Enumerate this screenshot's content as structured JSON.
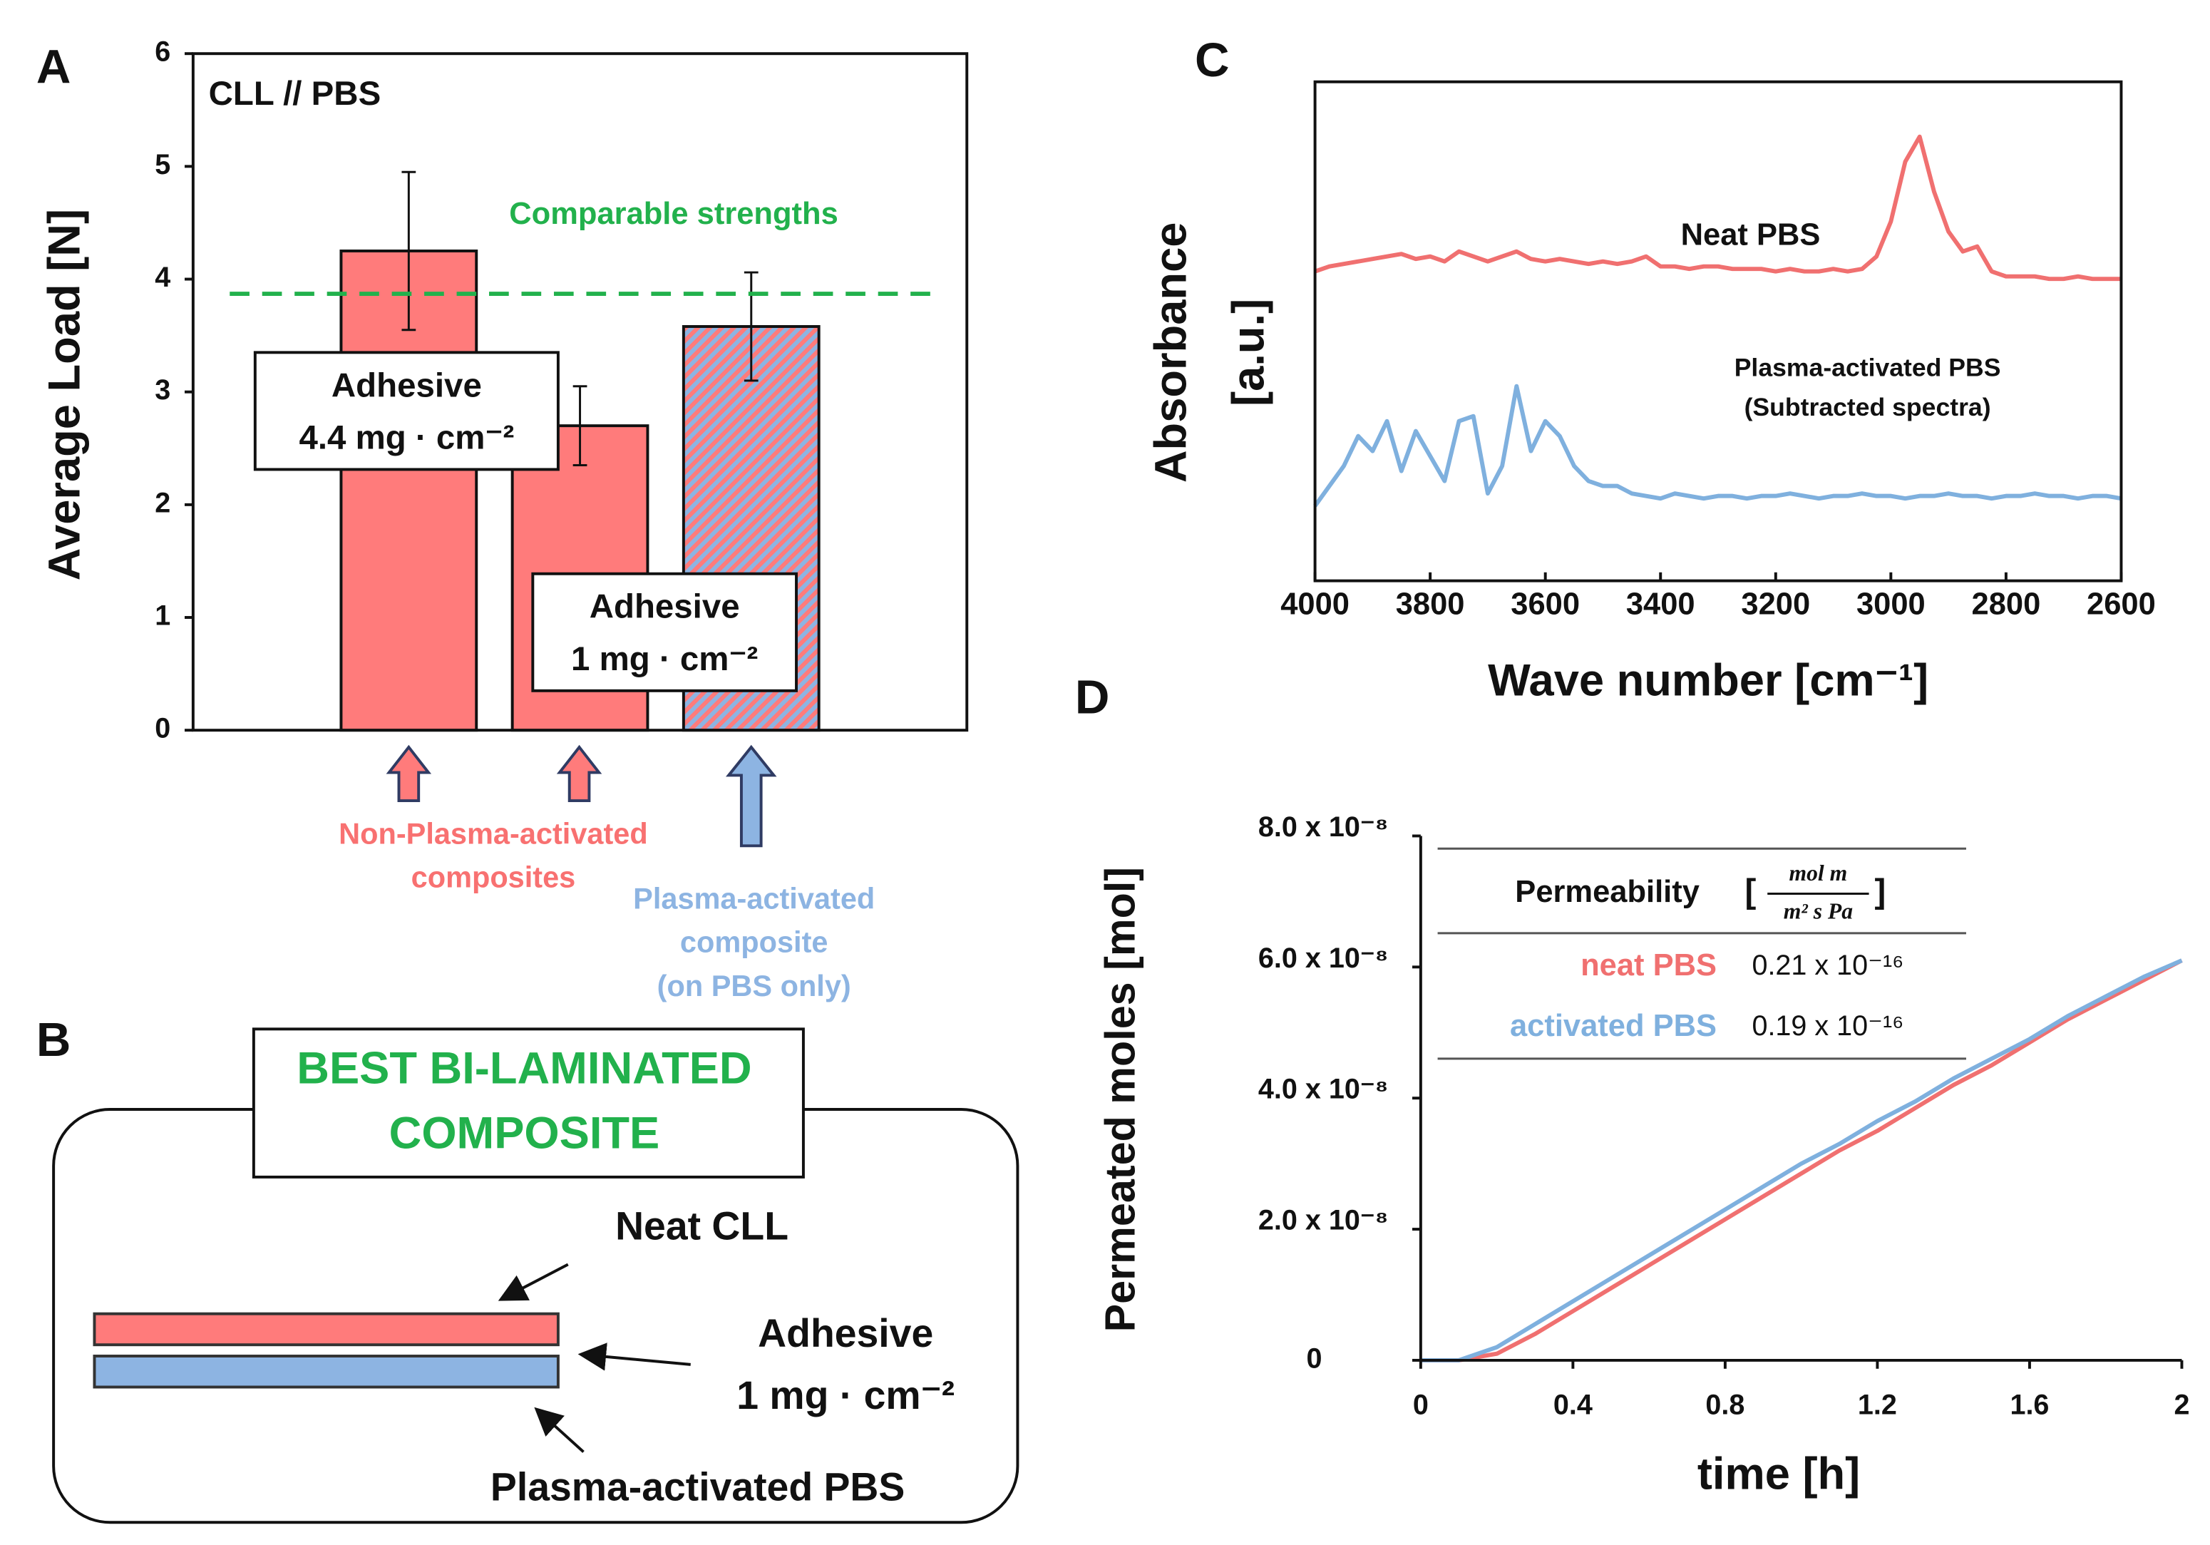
{
  "chart_data": [
    {
      "type": "bar",
      "panel": "A",
      "ylabel": "Average Load [N]",
      "categories": [
        null,
        null,
        null
      ],
      "values": [
        4.25,
        2.7,
        3.58
      ],
      "errors": [
        0.7,
        0.35,
        0.48
      ],
      "colors": [
        "#ff7b7b",
        "#ff7b7b",
        "#9b8fc4"
      ],
      "hatch": [
        false,
        false,
        true
      ],
      "ylim": [
        0,
        6
      ],
      "yticks": [
        0,
        1,
        2,
        3,
        4,
        5,
        6
      ],
      "annotation": "CLL // PBS",
      "reference_line": {
        "value": 3.87,
        "label": "Comparable strengths",
        "color": "#22b14c"
      },
      "bar_labels": [
        [
          "Adhesive",
          "4.4 mg · cm⁻²"
        ],
        [
          "Adhesive",
          "1 mg · cm⁻²"
        ]
      ],
      "arrow_captions": [
        {
          "text": [
            "Non-Plasma-activated",
            "composites"
          ],
          "color": "#f87171"
        },
        {
          "text": [
            "Plasma-activated",
            "composite",
            "(on PBS only)"
          ],
          "color": "#8db4e2"
        }
      ]
    },
    {
      "type": "line",
      "panel": "C",
      "ylabel": [
        "Absorbance",
        "[a.u.]"
      ],
      "xlabel": "Wave number [cm⁻¹]",
      "xlim": [
        4000,
        2600
      ],
      "xticks": [
        4000,
        3800,
        3600,
        3400,
        3200,
        3000,
        2800,
        2600
      ],
      "ylim": [
        0,
        1
      ],
      "x": [
        4000,
        3975,
        3950,
        3925,
        3900,
        3875,
        3850,
        3825,
        3800,
        3775,
        3750,
        3725,
        3700,
        3675,
        3650,
        3625,
        3600,
        3575,
        3550,
        3525,
        3500,
        3475,
        3450,
        3425,
        3400,
        3375,
        3350,
        3325,
        3300,
        3275,
        3250,
        3225,
        3200,
        3175,
        3150,
        3125,
        3100,
        3075,
        3050,
        3025,
        3000,
        2975,
        2950,
        2925,
        2900,
        2875,
        2850,
        2825,
        2800,
        2775,
        2750,
        2725,
        2700,
        2675,
        2650,
        2625,
        2600
      ],
      "series": [
        {
          "name": "Neat PBS",
          "color": "#f07070",
          "values": [
            0.62,
            0.63,
            0.635,
            0.64,
            0.645,
            0.65,
            0.655,
            0.645,
            0.65,
            0.64,
            0.66,
            0.65,
            0.64,
            0.65,
            0.66,
            0.645,
            0.64,
            0.645,
            0.64,
            0.635,
            0.64,
            0.635,
            0.64,
            0.65,
            0.63,
            0.63,
            0.625,
            0.63,
            0.63,
            0.625,
            0.625,
            0.625,
            0.62,
            0.625,
            0.62,
            0.62,
            0.625,
            0.62,
            0.625,
            0.65,
            0.72,
            0.84,
            0.89,
            0.78,
            0.7,
            0.66,
            0.67,
            0.62,
            0.61,
            0.61,
            0.61,
            0.605,
            0.605,
            0.61,
            0.605,
            0.605,
            0.605
          ]
        },
        {
          "name": "Plasma-activated PBS",
          "color": "#7fb0de",
          "values": [
            0.15,
            0.19,
            0.23,
            0.29,
            0.26,
            0.32,
            0.22,
            0.3,
            0.25,
            0.2,
            0.32,
            0.33,
            0.175,
            0.23,
            0.39,
            0.26,
            0.32,
            0.29,
            0.23,
            0.2,
            0.19,
            0.19,
            0.175,
            0.17,
            0.165,
            0.175,
            0.17,
            0.165,
            0.17,
            0.17,
            0.165,
            0.17,
            0.17,
            0.175,
            0.17,
            0.165,
            0.17,
            0.17,
            0.175,
            0.17,
            0.17,
            0.165,
            0.17,
            0.17,
            0.175,
            0.17,
            0.17,
            0.165,
            0.17,
            0.17,
            0.175,
            0.17,
            0.17,
            0.165,
            0.17,
            0.17,
            0.165
          ]
        }
      ],
      "series_note": "(Subtracted spectra)"
    },
    {
      "type": "line",
      "panel": "D",
      "ylabel": "Permeated moles [mol]",
      "xlabel": "time [h]",
      "xlim": [
        0,
        2
      ],
      "xticks": [
        0,
        0.4,
        0.8,
        1.2,
        1.6,
        2
      ],
      "ylim": [
        0,
        8e-08
      ],
      "yticks": [
        0,
        {
          "value": 2e-08,
          "label": "2.0 x 10⁻⁸"
        },
        {
          "value": 4e-08,
          "label": "4.0 x 10⁻⁸"
        },
        {
          "value": 6e-08,
          "label": "6.0 x 10⁻⁸"
        },
        {
          "value": 8e-08,
          "label": "8.0 x 10⁻⁸"
        }
      ],
      "x": [
        0,
        0.1,
        0.2,
        0.3,
        0.4,
        0.5,
        0.6,
        0.7,
        0.8,
        0.9,
        1.0,
        1.1,
        1.2,
        1.3,
        1.4,
        1.5,
        1.6,
        1.7,
        1.8,
        1.9,
        2.0
      ],
      "series": [
        {
          "name": "neat PBS",
          "color": "#f07070",
          "values": [
            0,
            0,
            1e-09,
            4e-09,
            7.5e-09,
            1.1e-08,
            1.45e-08,
            1.8e-08,
            2.15e-08,
            2.5e-08,
            2.85e-08,
            3.2e-08,
            3.5e-08,
            3.85e-08,
            4.2e-08,
            4.5e-08,
            4.85e-08,
            5.2e-08,
            5.5e-08,
            5.8e-08,
            6.1e-08
          ]
        },
        {
          "name": "activated PBS",
          "color": "#7fb0de",
          "values": [
            0,
            0,
            2e-09,
            5.5e-09,
            9e-09,
            1.25e-08,
            1.6e-08,
            1.95e-08,
            2.3e-08,
            2.65e-08,
            3e-08,
            3.3e-08,
            3.65e-08,
            3.95e-08,
            4.3e-08,
            4.6e-08,
            4.9e-08,
            5.25e-08,
            5.55e-08,
            5.85e-08,
            6.1e-08
          ]
        }
      ],
      "table": {
        "header": "Permeability",
        "unit_numerator": "mol m",
        "unit_denominator": "m² s Pa",
        "rows": [
          "0.21 x 10⁻¹⁶",
          "0.19 x 10⁻¹⁶"
        ]
      }
    }
  ],
  "diagram": {
    "panel": "B",
    "title": [
      "BEST BI-LAMINATED",
      "COMPOSITE"
    ],
    "top_layer": "Neat CLL",
    "middle_layer": [
      "Adhesive",
      "1 mg · cm⁻²"
    ],
    "bottom_layer": "Plasma-activated PBS"
  }
}
